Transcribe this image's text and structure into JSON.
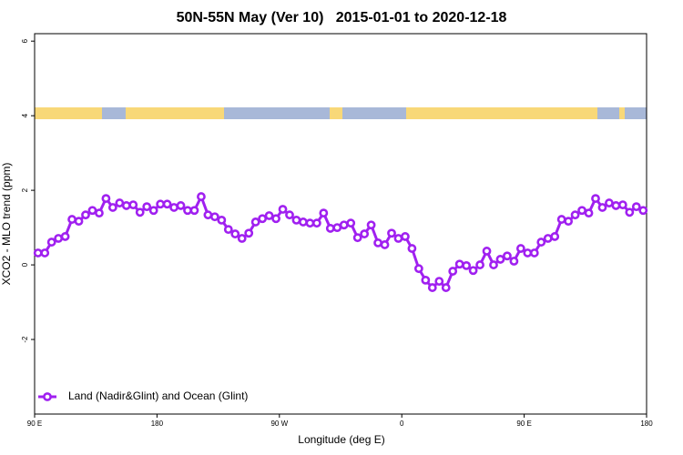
{
  "chart_data": {
    "type": "line",
    "title": "50N-55N May (Ver 10)   2015-01-01 to 2020-12-18",
    "x_label": "Longitude (deg E)",
    "y_label": "XCO2 - MLO trend (ppm)",
    "xlim": [
      90,
      540
    ],
    "ylim": [
      -4,
      6.2
    ],
    "xticks": [
      {
        "value": 90,
        "label": "90 E"
      },
      180,
      {
        "value": 270,
        "label": "90 W"
      },
      {
        "value": 360,
        "label": "0"
      },
      {
        "value": 450,
        "label": "90 E"
      },
      {
        "value": 540,
        "label": "180"
      }
    ],
    "yticks": [
      -2,
      0,
      2,
      4,
      6
    ],
    "legend": "bottomleft",
    "x": [
      92.5,
      97.5,
      102.5,
      107.5,
      112.5,
      117.5,
      122.5,
      127.5,
      132.5,
      137.5,
      142.5,
      147.5,
      152.5,
      157.5,
      162.5,
      167.5,
      172.5,
      177.5,
      182.5,
      187.5,
      192.5,
      197.5,
      202.5,
      207.5,
      212.5,
      217.5,
      222.5,
      227.5,
      232.5,
      237.5,
      242.5,
      247.5,
      252.5,
      257.5,
      262.5,
      267.5,
      272.5,
      277.5,
      282.5,
      287.5,
      292.5,
      297.5,
      302.5,
      307.5,
      312.5,
      317.5,
      322.5,
      327.5,
      332.5,
      337.5,
      342.5,
      347.5,
      352.5,
      357.5,
      362.5,
      367.5,
      372.5,
      377.5,
      382.5,
      387.5,
      392.5,
      397.5,
      402.5,
      407.5,
      412.5,
      417.5,
      422.5,
      427.5,
      432.5,
      437.5,
      442.5,
      447.5,
      452.5,
      457.5,
      462.5,
      467.5,
      472.5,
      477.5,
      482.5,
      487.5,
      492.5,
      497.5,
      502.5,
      507.5,
      512.5,
      517.5,
      522.5,
      527.5,
      532.5,
      537.5
    ],
    "series": [
      {
        "name": "Land (Nadir&Glint) and Ocean (Glint)",
        "color": "#a020f0",
        "values": [
          0.32,
          0.32,
          0.61,
          0.71,
          0.76,
          1.22,
          1.17,
          1.34,
          1.46,
          1.39,
          1.78,
          1.54,
          1.66,
          1.59,
          1.61,
          1.41,
          1.56,
          1.46,
          1.63,
          1.63,
          1.54,
          1.59,
          1.46,
          1.46,
          1.83,
          1.34,
          1.29,
          1.2,
          0.95,
          0.83,
          0.71,
          0.85,
          1.15,
          1.24,
          1.32,
          1.24,
          1.49,
          1.34,
          1.2,
          1.15,
          1.12,
          1.12,
          1.39,
          0.98,
          1.0,
          1.07,
          1.12,
          0.73,
          0.83,
          1.07,
          0.59,
          0.54,
          0.85,
          0.71,
          0.76,
          0.44,
          -0.1,
          -0.41,
          -0.61,
          -0.44,
          -0.61,
          -0.17,
          0.02,
          -0.02,
          -0.15,
          0.0,
          0.37,
          0.0,
          0.15,
          0.24,
          0.1,
          0.44,
          0.32,
          0.32,
          0.61,
          0.71,
          0.76,
          1.22,
          1.17,
          1.34,
          1.46,
          1.39,
          1.78,
          1.54,
          1.66,
          1.59,
          1.61,
          1.41,
          1.56,
          1.46
        ]
      }
    ]
  }
}
